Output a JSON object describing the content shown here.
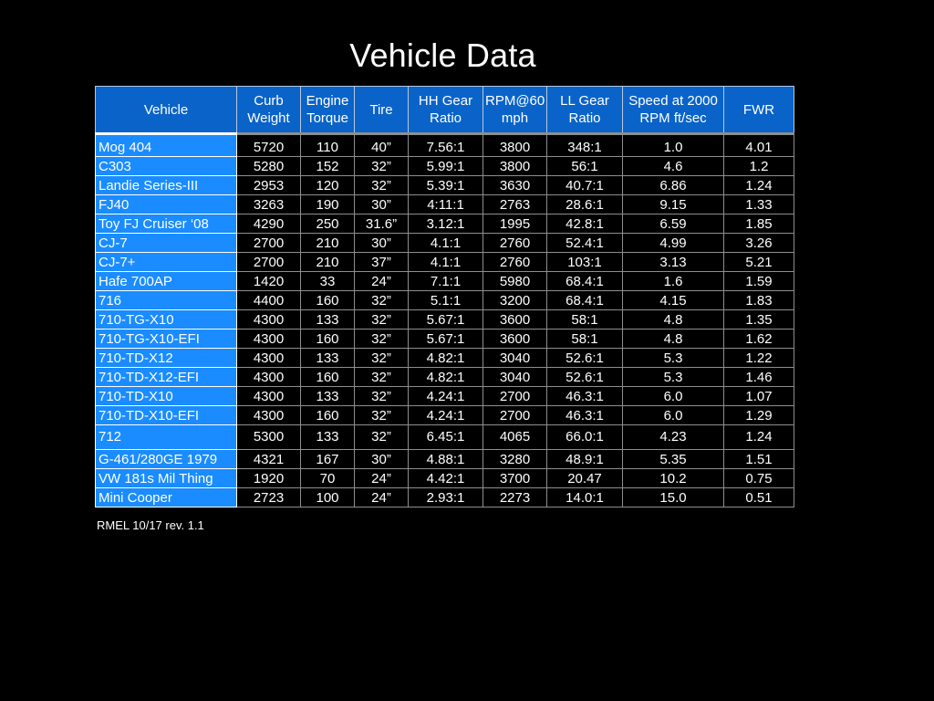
{
  "title": "Vehicle Data",
  "table": {
    "headers": [
      "Vehicle",
      "Curb Weight",
      "Engine Torque",
      "Tire",
      "HH Gear Ratio",
      "RPM@60 mph",
      "LL Gear Ratio",
      "Speed at 2000 RPM ft/sec",
      "FWR"
    ],
    "rows": [
      [
        "Mog 404",
        "5720",
        "110",
        "40”",
        "7.56:1",
        "3800",
        "348:1",
        "1.0",
        "4.01"
      ],
      [
        "C303",
        "5280",
        "152",
        "32”",
        "5.99:1",
        "3800",
        "56:1",
        "4.6",
        "1.2"
      ],
      [
        "Landie Series-III",
        "2953",
        "120",
        "32”",
        "5.39:1",
        "3630",
        "40.7:1",
        "6.86",
        "1.24"
      ],
      [
        "FJ40",
        "3263",
        "190",
        "30”",
        "4:11:1",
        "2763",
        "28.6:1",
        "9.15",
        "1.33"
      ],
      [
        "Toy FJ Cruiser ‘08",
        "4290",
        "250",
        "31.6”",
        "3.12:1",
        "1995",
        "42.8:1",
        "6.59",
        "1.85"
      ],
      [
        "CJ-7",
        "2700",
        "210",
        "30”",
        "4.1:1",
        "2760",
        "52.4:1",
        "4.99",
        "3.26"
      ],
      [
        "CJ-7+",
        "2700",
        "210",
        "37”",
        "4.1:1",
        "2760",
        "103:1",
        "3.13",
        "5.21"
      ],
      [
        "Hafe 700AP",
        "1420",
        "33",
        "24”",
        "7.1:1",
        "5980",
        "68.4:1",
        "1.6",
        "1.59"
      ],
      [
        "716",
        "4400",
        "160",
        "32”",
        "5.1:1",
        "3200",
        "68.4:1",
        "4.15",
        "1.83"
      ],
      [
        "710-TG-X10",
        "4300",
        "133",
        "32”",
        "5.67:1",
        "3600",
        "58:1",
        "4.8",
        "1.35"
      ],
      [
        "710-TG-X10-EFI",
        "4300",
        "160",
        "32”",
        "5.67:1",
        "3600",
        "58:1",
        "4.8",
        "1.62"
      ],
      [
        "710-TD-X12",
        "4300",
        "133",
        "32”",
        "4.82:1",
        "3040",
        "52.6:1",
        "5.3",
        "1.22"
      ],
      [
        "710-TD-X12-EFI",
        "4300",
        "160",
        "32”",
        "4.82:1",
        "3040",
        "52.6:1",
        "5.3",
        "1.46"
      ],
      [
        "710-TD-X10",
        "4300",
        "133",
        "32”",
        "4.24:1",
        "2700",
        "46.3:1",
        "6.0",
        "1.07"
      ],
      [
        "710-TD-X10-EFI",
        "4300",
        "160",
        "32”",
        "4.24:1",
        "2700",
        "46.3:1",
        "6.0",
        "1.29"
      ],
      [
        "712",
        "5300",
        "133",
        "32”",
        "6.45:1",
        "4065",
        "66.0:1",
        "4.23",
        "1.24"
      ],
      [
        "G-461/280GE 1979",
        "4321",
        "167",
        "30”",
        "4.88:1",
        "3280",
        "48.9:1",
        "5.35",
        "1.51"
      ],
      [
        "VW 181s Mil Thing",
        "1920",
        "70",
        "24”",
        "4.42:1",
        "3700",
        "20.47",
        "10.2",
        "0.75"
      ],
      [
        "Mini Cooper",
        "2723",
        "100",
        "24”",
        "2.93:1",
        "2273",
        "14.0:1",
        "15.0",
        "0.51"
      ]
    ]
  },
  "footnote": "RMEL 10/17 rev. 1.1",
  "colors": {
    "background": "#000000",
    "header_fill": "#0a63c9",
    "vehicle_column_fill": "#1a8cff",
    "text": "#ffffff"
  }
}
